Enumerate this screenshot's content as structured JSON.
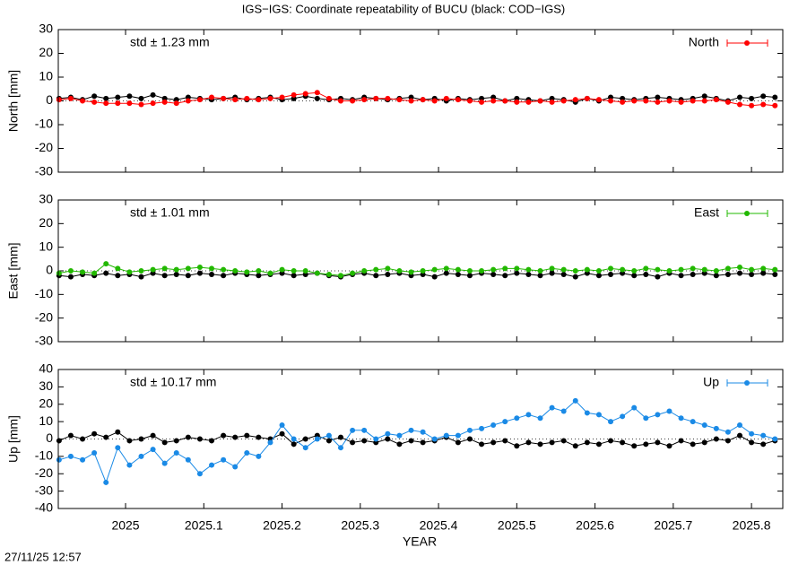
{
  "title": "IGS−IGS: Coordinate repeatability of BUCU (black: COD−IGS)",
  "timestamp": "27/11/25 12:57",
  "xlabel": "YEAR",
  "xlim": [
    2024.914,
    2025.84
  ],
  "xticks": [
    2025,
    2025.1,
    2025.2,
    2025.3,
    2025.4,
    2025.5,
    2025.6,
    2025.7,
    2025.8
  ],
  "x": [
    2024.915,
    2024.93,
    2024.945,
    2024.96,
    2024.975,
    2024.99,
    2025.005,
    2025.02,
    2025.035,
    2025.05,
    2025.065,
    2025.08,
    2025.095,
    2025.11,
    2025.125,
    2025.14,
    2025.155,
    2025.17,
    2025.185,
    2025.2,
    2025.215,
    2025.23,
    2025.245,
    2025.26,
    2025.275,
    2025.29,
    2025.305,
    2025.32,
    2025.335,
    2025.35,
    2025.365,
    2025.38,
    2025.395,
    2025.41,
    2025.425,
    2025.44,
    2025.455,
    2025.47,
    2025.485,
    2025.5,
    2025.515,
    2025.53,
    2025.545,
    2025.56,
    2025.575,
    2025.59,
    2025.605,
    2025.62,
    2025.635,
    2025.65,
    2025.665,
    2025.68,
    2025.695,
    2025.71,
    2025.725,
    2025.74,
    2025.755,
    2025.77,
    2025.785,
    2025.8,
    2025.815,
    2025.83
  ],
  "chart_data": [
    {
      "type": "line",
      "ylabel": "North [mm]",
      "annotation": "std ± 1.23 mm",
      "ylim": [
        -30,
        30
      ],
      "yticks": [
        -30,
        -20,
        -10,
        0,
        10,
        20,
        30
      ],
      "series": [
        {
          "color": "#000000",
          "values": [
            1,
            1.5,
            0.5,
            2,
            1,
            1.5,
            2,
            1,
            2.5,
            1,
            0.5,
            1.5,
            1,
            0.5,
            1,
            1.5,
            0.5,
            1,
            1.5,
            0.5,
            1,
            2,
            1,
            0.5,
            1,
            0.5,
            1.5,
            1,
            0.5,
            1,
            1.5,
            0.5,
            1,
            0,
            1,
            0.5,
            1,
            1.5,
            0,
            1,
            0.5,
            0,
            1,
            0.5,
            -0.5,
            1,
            0,
            1.5,
            1,
            0.5,
            1,
            1.5,
            1,
            0.5,
            1,
            2,
            1,
            0,
            1.5,
            1,
            2,
            1.5
          ]
        },
        {
          "name": "North",
          "color": "#ff0000",
          "values": [
            0.5,
            1,
            0,
            -0.5,
            -1,
            -1,
            -1,
            -1.5,
            -1,
            -0.5,
            -1,
            0,
            0.5,
            1.5,
            1,
            0.5,
            1,
            0.5,
            1,
            1.5,
            2.5,
            3,
            3.5,
            1,
            0,
            0,
            0.5,
            1,
            1,
            0.5,
            0,
            0.5,
            0,
            1,
            0.5,
            0,
            -0.5,
            0,
            0,
            -0.5,
            -0.5,
            0,
            -0.5,
            0,
            0.5,
            1,
            0.5,
            0,
            -0.5,
            0,
            0,
            -0.5,
            0,
            -0.5,
            0,
            0,
            0.5,
            -0.5,
            -1.5,
            -2,
            -1.5,
            -2
          ]
        }
      ]
    },
    {
      "type": "line",
      "ylabel": "East [mm]",
      "annotation": "std ± 1.01 mm",
      "ylim": [
        -30,
        30
      ],
      "yticks": [
        -30,
        -20,
        -10,
        0,
        10,
        20,
        30
      ],
      "series": [
        {
          "color": "#000000",
          "values": [
            -2,
            -2.5,
            -1.5,
            -2,
            -1,
            -2,
            -1.5,
            -2.5,
            -1,
            -2,
            -1.5,
            -2,
            -1,
            -1.5,
            -2,
            -1,
            -1.5,
            -2,
            -1.5,
            -1,
            -2,
            -1.5,
            -1,
            -2,
            -2.5,
            -1.5,
            -1,
            -2,
            -1.5,
            -1,
            -2,
            -1.5,
            -2.5,
            -1,
            -1.5,
            -2,
            -1,
            -1.5,
            -2,
            -1,
            -1.5,
            -2,
            -1,
            -1.5,
            -2.5,
            -1,
            -2,
            -1.5,
            -1,
            -2,
            -1.5,
            -2.5,
            -1,
            -2,
            -1.5,
            -1,
            -2,
            -1.5,
            -1,
            -1.5,
            -1,
            -1.5
          ]
        },
        {
          "name": "East",
          "color": "#22b800",
          "values": [
            -1,
            0,
            -0.5,
            -1,
            3,
            1,
            -0.5,
            0,
            0.5,
            1,
            0.5,
            1,
            1.5,
            1,
            0.5,
            0,
            -0.5,
            0,
            -1,
            0.5,
            0,
            0,
            -1,
            -1.5,
            -2,
            -1,
            0,
            0.5,
            1,
            0,
            -0.5,
            0,
            0.5,
            1,
            0.5,
            0,
            0,
            0.5,
            1,
            1,
            0.5,
            0,
            1,
            0.5,
            0,
            0.5,
            0,
            1,
            0.5,
            0,
            1,
            0.5,
            0,
            0.5,
            1,
            0.5,
            0,
            1,
            1.5,
            0.5,
            1,
            0.5
          ]
        }
      ]
    },
    {
      "type": "line",
      "ylabel": "Up [mm]",
      "annotation": "std ± 10.17 mm",
      "ylim": [
        -40,
        40
      ],
      "yticks": [
        -40,
        -30,
        -20,
        -10,
        0,
        10,
        20,
        30,
        40
      ],
      "series": [
        {
          "color": "#000000",
          "values": [
            -1,
            2,
            0,
            3,
            1,
            4,
            -1,
            0,
            2,
            -2,
            -1,
            1,
            0,
            -1,
            2,
            1,
            2,
            1,
            0,
            3,
            -3,
            0,
            2,
            -1,
            1,
            -2,
            -1,
            -2,
            0,
            -3,
            -1,
            -2,
            -1,
            1,
            -2,
            0,
            -3,
            -2,
            -1,
            -4,
            -2,
            -3,
            -2,
            -1,
            -4,
            -2,
            -3,
            -1,
            -2,
            -4,
            -3,
            -2,
            -4,
            -1,
            -3,
            -2,
            0,
            -1,
            2,
            -2,
            -3,
            -1
          ]
        },
        {
          "name": "Up",
          "color": "#1a8ae6",
          "values": [
            -12,
            -10,
            -12,
            -8,
            -25,
            -5,
            -15,
            -10,
            -6,
            -14,
            -8,
            -12,
            -20,
            -15,
            -12,
            -16,
            -8,
            -10,
            -2,
            8,
            0,
            -5,
            0,
            2,
            -5,
            5,
            5,
            0,
            3,
            2,
            5,
            4,
            0,
            2,
            2,
            5,
            6,
            8,
            10,
            12,
            14,
            12,
            18,
            16,
            22,
            15,
            14,
            10,
            13,
            18,
            12,
            14,
            16,
            12,
            10,
            8,
            6,
            4,
            8,
            3,
            2,
            0
          ]
        }
      ]
    }
  ]
}
